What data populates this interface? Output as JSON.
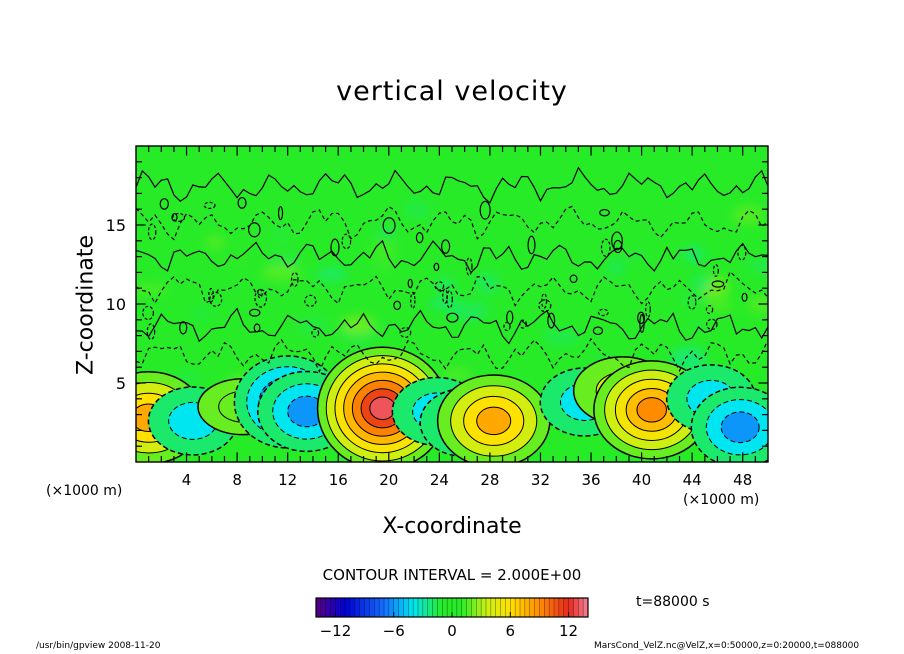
{
  "chart_data": {
    "type": "heatmap",
    "title": "vertical velocity",
    "xlabel": "X-coordinate",
    "ylabel": "Z-coordinate",
    "x_unit": "(×1000 m)",
    "x_ticks": [
      4,
      8,
      12,
      16,
      20,
      24,
      28,
      32,
      36,
      40,
      44,
      48
    ],
    "y_ticks": [
      5,
      10,
      15
    ],
    "xlim": [
      0,
      50
    ],
    "ylim": [
      0,
      20
    ],
    "contour_interval_label": "CONTOUR INTERVAL = 2.000E+00",
    "time_label": "t=88000 s",
    "colorbar": {
      "range": [
        -14,
        14
      ],
      "ticks": [
        -12,
        -6,
        0,
        6,
        12
      ],
      "colormap": "rainbow (blue = negative, green = zero, red = positive)"
    },
    "features": [
      {
        "x": 1.0,
        "z": 2.8,
        "value": 8,
        "sign": "updraft"
      },
      {
        "x": 4.5,
        "z": 2.6,
        "value": -4,
        "sign": "downdraft"
      },
      {
        "x": 8.5,
        "z": 3.5,
        "value": 2,
        "sign": "updraft"
      },
      {
        "x": 12.0,
        "z": 3.8,
        "value": -8,
        "sign": "downdraft"
      },
      {
        "x": 13.5,
        "z": 3.2,
        "value": -6,
        "sign": "downdraft"
      },
      {
        "x": 19.5,
        "z": 3.4,
        "value": 13,
        "sign": "updraft"
      },
      {
        "x": 23.8,
        "z": 3.2,
        "value": -4,
        "sign": "downdraft"
      },
      {
        "x": 26.0,
        "z": 2.5,
        "value": -4,
        "sign": "downdraft"
      },
      {
        "x": 28.3,
        "z": 2.6,
        "value": 8,
        "sign": "updraft"
      },
      {
        "x": 35.5,
        "z": 3.8,
        "value": -4,
        "sign": "downdraft"
      },
      {
        "x": 38.5,
        "z": 4.5,
        "value": 4,
        "sign": "updraft"
      },
      {
        "x": 40.8,
        "z": 3.3,
        "value": 9,
        "sign": "updraft"
      },
      {
        "x": 45.5,
        "z": 4.0,
        "value": -4,
        "sign": "downdraft"
      },
      {
        "x": 47.8,
        "z": 2.2,
        "value": -6,
        "sign": "downdraft"
      }
    ]
  },
  "footer": {
    "left": "/usr/bin/gpview   2008-11-20",
    "right": "MarsCond_VelZ.nc@VelZ,x=0:50000,z=0:20000,t=088000"
  },
  "colors": {
    "background_field": "#22ee22",
    "negative_core": "#1a1aff",
    "positive_core": "#e62a2a"
  }
}
